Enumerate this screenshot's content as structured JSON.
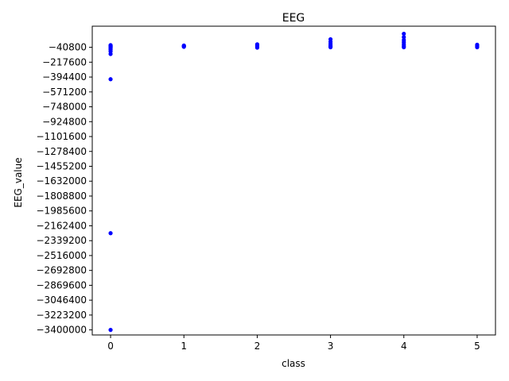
{
  "chart_data": {
    "type": "scatter",
    "title": "EEG",
    "xlabel": "class",
    "ylabel": "EEG_value",
    "xlim": [
      -0.25,
      5.25
    ],
    "ylim": [
      -3460000,
      210000
    ],
    "x_ticks": [
      0,
      1,
      2,
      3,
      4,
      5
    ],
    "y_ticks": [
      -40800,
      -217600,
      -394400,
      -571200,
      -748000,
      -924800,
      -1101600,
      -1278400,
      -1455200,
      -1632000,
      -1808800,
      -1985600,
      -2162400,
      -2339200,
      -2516000,
      -2692800,
      -2869600,
      -3046400,
      -3223200,
      -3400000
    ],
    "grid": false,
    "marker_color": "#0000ff",
    "points": [
      {
        "x": 0,
        "y": -3400000
      },
      {
        "x": 0,
        "y": -2250000
      },
      {
        "x": 0,
        "y": -420000
      },
      {
        "x": 0,
        "y": -120000
      },
      {
        "x": 0,
        "y": -90000
      },
      {
        "x": 0,
        "y": -70000
      },
      {
        "x": 0,
        "y": -55000
      },
      {
        "x": 0,
        "y": -45000
      },
      {
        "x": 0,
        "y": -40000
      },
      {
        "x": 0,
        "y": -35000
      },
      {
        "x": 0,
        "y": -30000
      },
      {
        "x": 0,
        "y": -25000
      },
      {
        "x": 0,
        "y": -20000
      },
      {
        "x": 0,
        "y": -15000
      },
      {
        "x": 1,
        "y": -35000
      },
      {
        "x": 1,
        "y": -30000
      },
      {
        "x": 1,
        "y": -25000
      },
      {
        "x": 1,
        "y": -20000
      },
      {
        "x": 2,
        "y": -45000
      },
      {
        "x": 2,
        "y": -35000
      },
      {
        "x": 2,
        "y": -25000
      },
      {
        "x": 2,
        "y": -15000
      },
      {
        "x": 2,
        "y": -5000
      },
      {
        "x": 3,
        "y": -40000
      },
      {
        "x": 3,
        "y": -30000
      },
      {
        "x": 3,
        "y": -20000
      },
      {
        "x": 3,
        "y": 0
      },
      {
        "x": 3,
        "y": 25000
      },
      {
        "x": 3,
        "y": 55000
      },
      {
        "x": 4,
        "y": -40000
      },
      {
        "x": 4,
        "y": -25000
      },
      {
        "x": 4,
        "y": -5000
      },
      {
        "x": 4,
        "y": 20000
      },
      {
        "x": 4,
        "y": 45000
      },
      {
        "x": 4,
        "y": 80000
      },
      {
        "x": 4,
        "y": 120000
      },
      {
        "x": 5,
        "y": -40000
      },
      {
        "x": 5,
        "y": -30000
      },
      {
        "x": 5,
        "y": -20000
      },
      {
        "x": 5,
        "y": -10000
      }
    ]
  }
}
